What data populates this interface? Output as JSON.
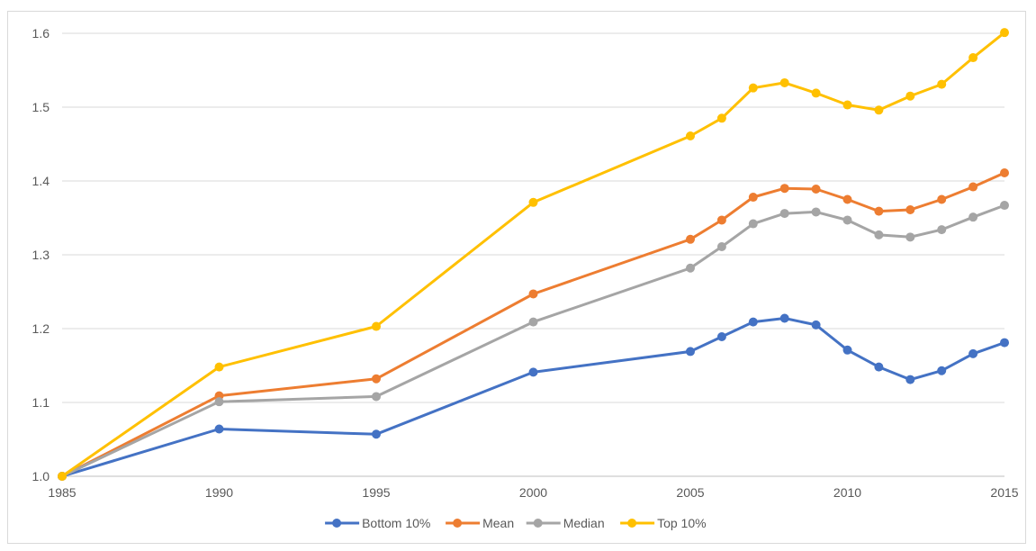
{
  "chart_data": {
    "type": "line",
    "title": "",
    "xlabel": "",
    "ylabel": "",
    "x": [
      1985,
      1990,
      1995,
      2000,
      2005,
      2006,
      2007,
      2008,
      2009,
      2010,
      2011,
      2012,
      2013,
      2014,
      2015
    ],
    "x_ticks": [
      "1985",
      "1990",
      "1995",
      "2000",
      "2005",
      "2010",
      "2015"
    ],
    "y_ticks": [
      "1.0",
      "1.1",
      "1.2",
      "1.3",
      "1.4",
      "1.5",
      "1.6"
    ],
    "ylim": [
      1.0,
      1.6
    ],
    "xlim": [
      1985,
      2015
    ],
    "grid": "horizontal",
    "legend_position": "bottom",
    "series": [
      {
        "name": "Bottom 10%",
        "color": "#4472c4",
        "values": [
          1.0,
          1.064,
          1.057,
          1.141,
          1.169,
          1.189,
          1.209,
          1.214,
          1.205,
          1.171,
          1.148,
          1.131,
          1.143,
          1.166,
          1.181
        ]
      },
      {
        "name": "Mean",
        "color": "#ed7d31",
        "values": [
          1.0,
          1.109,
          1.132,
          1.247,
          1.321,
          1.347,
          1.378,
          1.39,
          1.389,
          1.375,
          1.359,
          1.361,
          1.375,
          1.392,
          1.411
        ]
      },
      {
        "name": "Median",
        "color": "#a5a5a5",
        "values": [
          1.0,
          1.101,
          1.108,
          1.209,
          1.282,
          1.311,
          1.342,
          1.356,
          1.358,
          1.347,
          1.327,
          1.324,
          1.334,
          1.351,
          1.367
        ]
      },
      {
        "name": "Top 10%",
        "color": "#ffc000",
        "values": [
          1.0,
          1.148,
          1.203,
          1.371,
          1.461,
          1.485,
          1.526,
          1.533,
          1.519,
          1.503,
          1.496,
          1.515,
          1.531,
          1.567,
          1.601
        ]
      }
    ]
  }
}
